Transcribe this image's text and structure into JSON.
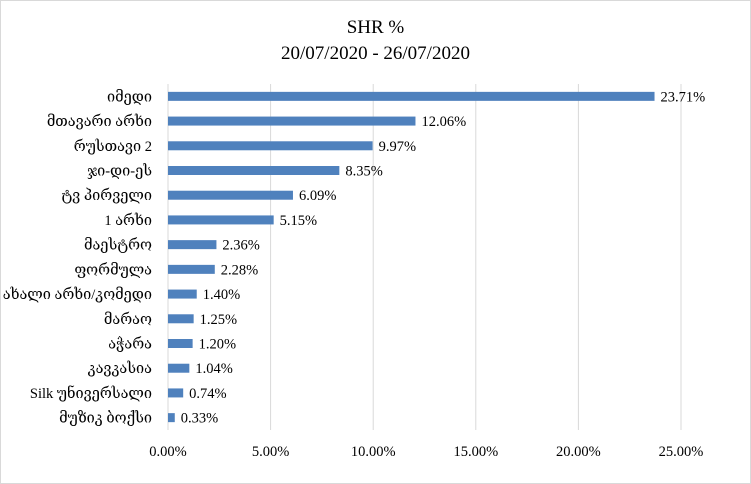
{
  "chart_data": {
    "type": "bar",
    "orientation": "horizontal",
    "title": "SHR %",
    "subtitle": "20/07/2020 - 26/07/2020",
    "categories": [
      "იმედი",
      "მთავარი არხი",
      "რუსთავი 2",
      "ჯი-დი-ეს",
      "ტვ პირველი",
      "1 არხი",
      "მაესტრო",
      "ფორმულა",
      "ახალი არხი/კომედი",
      "მარაო",
      "აჭარა",
      "კავკასია",
      "Silk უნივერსალი",
      "მუზიკ ბოქსი"
    ],
    "values": [
      23.71,
      12.06,
      9.97,
      8.35,
      6.09,
      5.15,
      2.36,
      2.28,
      1.4,
      1.25,
      1.2,
      1.04,
      0.74,
      0.33
    ],
    "data_labels": [
      "23.71%",
      "12.06%",
      "9.97%",
      "8.35%",
      "6.09%",
      "5.15%",
      "2.36%",
      "2.28%",
      "1.40%",
      "1.25%",
      "1.20%",
      "1.04%",
      "0.74%",
      "0.33%"
    ],
    "xlim": [
      0,
      25
    ],
    "xticks": [
      0,
      5,
      10,
      15,
      20,
      25
    ],
    "xtick_labels": [
      "0.00%",
      "5.00%",
      "10.00%",
      "15.00%",
      "20.00%",
      "25.00%"
    ],
    "grid": "vertical",
    "legend": "none",
    "bar_color": "#4f81bd",
    "grid_color": "#d9d9d9"
  }
}
